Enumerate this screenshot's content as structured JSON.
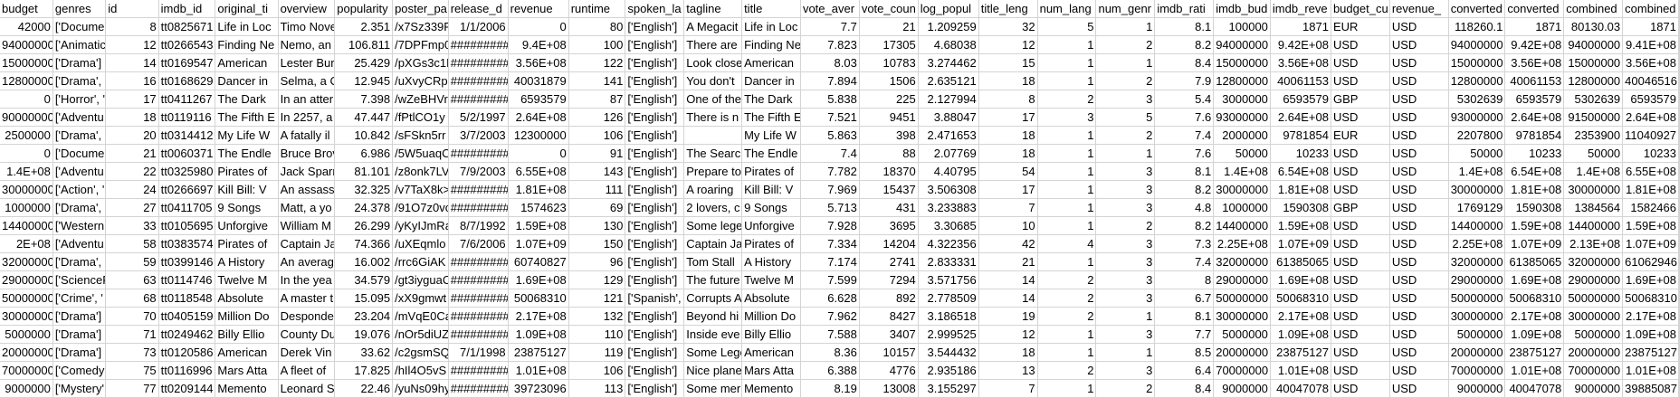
{
  "columns": [
    {
      "key": "budget",
      "header": "budget",
      "align": "num"
    },
    {
      "key": "genres",
      "header": "genres",
      "align": "txt"
    },
    {
      "key": "id",
      "header": "id",
      "align": "num"
    },
    {
      "key": "imdb_id",
      "header": "imdb_id",
      "align": "txt"
    },
    {
      "key": "original_title",
      "header": "original_ti",
      "align": "txt"
    },
    {
      "key": "overview",
      "header": "overview",
      "align": "txt"
    },
    {
      "key": "popularity",
      "header": "popularity",
      "align": "num"
    },
    {
      "key": "poster_path",
      "header": "poster_pa",
      "align": "txt"
    },
    {
      "key": "release_date",
      "header": "release_d",
      "align": "num"
    },
    {
      "key": "revenue",
      "header": "revenue",
      "align": "num"
    },
    {
      "key": "runtime",
      "header": "runtime",
      "align": "num"
    },
    {
      "key": "spoken_languages",
      "header": "spoken_la",
      "align": "txt"
    },
    {
      "key": "tagline",
      "header": "tagline",
      "align": "txt"
    },
    {
      "key": "title",
      "header": "title",
      "align": "txt"
    },
    {
      "key": "vote_average",
      "header": "vote_aver",
      "align": "num"
    },
    {
      "key": "vote_count",
      "header": "vote_coun",
      "align": "num"
    },
    {
      "key": "log_popularity",
      "header": "log_popul",
      "align": "num"
    },
    {
      "key": "title_length",
      "header": "title_leng",
      "align": "num"
    },
    {
      "key": "num_languages",
      "header": "num_lang",
      "align": "num"
    },
    {
      "key": "num_genres",
      "header": "num_genr",
      "align": "num"
    },
    {
      "key": "imdb_rating",
      "header": "imdb_rati",
      "align": "num"
    },
    {
      "key": "imdb_budget",
      "header": "imdb_bud",
      "align": "num"
    },
    {
      "key": "imdb_revenue",
      "header": "imdb_reve",
      "align": "num"
    },
    {
      "key": "budget_currency",
      "header": "budget_cu",
      "align": "txt"
    },
    {
      "key": "revenue_currency",
      "header": "revenue_",
      "align": "txt"
    },
    {
      "key": "converted_budget",
      "header": "converted",
      "align": "num"
    },
    {
      "key": "converted_revenue",
      "header": "converted",
      "align": "num"
    },
    {
      "key": "combined_budget",
      "header": "combined",
      "align": "num"
    },
    {
      "key": "combined_revenue",
      "header": "combined",
      "align": "num"
    }
  ],
  "rows": [
    [
      "42000",
      "['Documer",
      "8",
      "tt0825671",
      "Life in Loc",
      "Timo Nove",
      "2.351",
      "/x7Sz339F",
      "1/1/2006",
      "0",
      "80",
      "['English']",
      "A Megacit",
      "Life in Loc",
      "7.7",
      "21",
      "1.209259",
      "32",
      "5",
      "1",
      "8.1",
      "100000",
      "1871",
      "EUR",
      "USD",
      "118260.1",
      "1871",
      "80130.03",
      "1871"
    ],
    [
      "94000000",
      "['Animatic",
      "12",
      "tt0266543",
      "Finding Ne",
      "Nemo, an",
      "106.811",
      "/7DPFmp0",
      "#########",
      "9.4E+08",
      "100",
      "['English']",
      "There are",
      "Finding Ne",
      "7.823",
      "17305",
      "4.68038",
      "12",
      "1",
      "2",
      "8.2",
      "94000000",
      "9.42E+08",
      "USD",
      "USD",
      "94000000",
      "9.42E+08",
      "94000000",
      "9.41E+08"
    ],
    [
      "15000000",
      "['Drama']",
      "14",
      "tt0169547",
      "American",
      "Lester Bur",
      "25.429",
      "/pXGs3c1E",
      "#########",
      "3.56E+08",
      "122",
      "['English']",
      "Look close",
      "American",
      "8.03",
      "10783",
      "3.274462",
      "15",
      "1",
      "1",
      "8.4",
      "15000000",
      "3.56E+08",
      "USD",
      "USD",
      "15000000",
      "3.56E+08",
      "15000000",
      "3.56E+08"
    ],
    [
      "12800000",
      "['Drama', '",
      "16",
      "tt0168629",
      "Dancer in",
      "Selma, a C",
      "12.945",
      "/uXvyCRp",
      "#########",
      "40031879",
      "141",
      "['English']",
      "You don't",
      "Dancer in",
      "7.894",
      "1506",
      "2.635121",
      "18",
      "1",
      "2",
      "7.9",
      "12800000",
      "40061153",
      "USD",
      "USD",
      "12800000",
      "40061153",
      "12800000",
      "40046516"
    ],
    [
      "0",
      "['Horror', '",
      "17",
      "tt0411267",
      "The Dark",
      "In an atter",
      "7.398",
      "/wZeBHVr",
      "#########",
      "6593579",
      "87",
      "['English']",
      "One of the",
      "The Dark",
      "5.838",
      "225",
      "2.127994",
      "8",
      "2",
      "3",
      "5.4",
      "3000000",
      "6593579",
      "GBP",
      "USD",
      "5302639",
      "6593579",
      "5302639",
      "6593579"
    ],
    [
      "90000000",
      "['Adventu",
      "18",
      "tt0119116",
      "The Fifth E",
      "In 2257, a",
      "47.447",
      "/fPtlCO1y",
      "5/2/1997",
      "2.64E+08",
      "126",
      "['English']",
      "There is n",
      "The Fifth E",
      "7.521",
      "9451",
      "3.88047",
      "17",
      "3",
      "5",
      "7.6",
      "93000000",
      "2.64E+08",
      "USD",
      "USD",
      "93000000",
      "2.64E+08",
      "91500000",
      "2.64E+08"
    ],
    [
      "2500000",
      "['Drama', '",
      "20",
      "tt0314412",
      "My Life W",
      "A fatally il",
      "10.842",
      "/sFSkn5rr",
      "3/7/2003",
      "12300000",
      "106",
      "['English']",
      "",
      "My Life W",
      "5.863",
      "398",
      "2.471653",
      "18",
      "1",
      "2",
      "7.4",
      "2000000",
      "9781854",
      "EUR",
      "USD",
      "2207800",
      "9781854",
      "2353900",
      "11040927"
    ],
    [
      "0",
      "['Documer",
      "21",
      "tt0060371",
      "The Endle",
      "Bruce Brov",
      "6.986",
      "/5W5uaqC",
      "#########",
      "0",
      "91",
      "['English']",
      "The Searc",
      "The Endle",
      "7.4",
      "88",
      "2.07769",
      "18",
      "1",
      "1",
      "7.6",
      "50000",
      "10233",
      "USD",
      "USD",
      "50000",
      "10233",
      "50000",
      "10233"
    ],
    [
      "1.4E+08",
      "['Adventu",
      "22",
      "tt0325980",
      "Pirates of",
      "Jack Sparr",
      "81.101",
      "/z8onk7LV",
      "7/9/2003",
      "6.55E+08",
      "143",
      "['English']",
      "Prepare to",
      "Pirates of",
      "7.782",
      "18370",
      "4.40795",
      "54",
      "1",
      "3",
      "8.1",
      "1.4E+08",
      "6.54E+08",
      "USD",
      "USD",
      "1.4E+08",
      "6.54E+08",
      "1.4E+08",
      "6.55E+08"
    ],
    [
      "30000000",
      "['Action', '",
      "24",
      "tt0266697",
      "Kill Bill: V",
      "An assassi",
      "32.325",
      "/v7TaX8k>",
      "#########",
      "1.81E+08",
      "111",
      "['English']",
      "A roaring",
      "Kill Bill: V",
      "7.969",
      "15437",
      "3.506308",
      "17",
      "1",
      "3",
      "8.2",
      "30000000",
      "1.81E+08",
      "USD",
      "USD",
      "30000000",
      "1.81E+08",
      "30000000",
      "1.81E+08"
    ],
    [
      "1000000",
      "['Drama', '",
      "27",
      "tt0411705",
      "9 Songs",
      "Matt, a yo",
      "24.378",
      "/91O7z0vc",
      "#########",
      "1574623",
      "69",
      "['English']",
      "2 lovers, c",
      "9 Songs",
      "5.713",
      "431",
      "3.233883",
      "7",
      "1",
      "3",
      "4.8",
      "1000000",
      "1590308",
      "GBP",
      "USD",
      "1769129",
      "1590308",
      "1384564",
      "1582466"
    ],
    [
      "14400000",
      "['Western",
      "33",
      "tt0105695",
      "Unforgive",
      "William M",
      "26.299",
      "/yKyIJmRa",
      "8/7/1992",
      "1.59E+08",
      "130",
      "['English']",
      "Some lege",
      "Unforgive",
      "7.928",
      "3695",
      "3.30685",
      "10",
      "1",
      "2",
      "8.2",
      "14400000",
      "1.59E+08",
      "USD",
      "USD",
      "14400000",
      "1.59E+08",
      "14400000",
      "1.59E+08"
    ],
    [
      "2E+08",
      "['Adventu",
      "58",
      "tt0383574",
      "Pirates of",
      "Captain Ja",
      "74.366",
      "/uXEqmlo",
      "7/6/2006",
      "1.07E+09",
      "150",
      "['English']",
      "Captain Ja",
      "Pirates of",
      "7.334",
      "14204",
      "4.322356",
      "42",
      "4",
      "3",
      "7.3",
      "2.25E+08",
      "1.07E+09",
      "USD",
      "USD",
      "2.25E+08",
      "1.07E+09",
      "2.13E+08",
      "1.07E+09"
    ],
    [
      "32000000",
      "['Drama', '",
      "59",
      "tt0399146",
      "A History",
      "An averag",
      "16.002",
      "/rrc6GiAK",
      "#########",
      "60740827",
      "96",
      "['English']",
      "Tom Stall",
      "A History",
      "7.174",
      "2741",
      "2.833331",
      "21",
      "1",
      "3",
      "7.4",
      "32000000",
      "61385065",
      "USD",
      "USD",
      "32000000",
      "61385065",
      "32000000",
      "61062946"
    ],
    [
      "29000000",
      "['ScienceF",
      "63",
      "tt0114746",
      "Twelve M",
      "In the yea",
      "34.579",
      "/gt3iyguaC",
      "#########",
      "1.69E+08",
      "129",
      "['English']",
      "The future",
      "Twelve M",
      "7.599",
      "7294",
      "3.571756",
      "14",
      "2",
      "3",
      "8",
      "29000000",
      "1.69E+08",
      "USD",
      "USD",
      "29000000",
      "1.69E+08",
      "29000000",
      "1.69E+08"
    ],
    [
      "50000000",
      "['Crime', '",
      "68",
      "tt0118548",
      "Absolute",
      "A master t",
      "15.095",
      "/xX9gmwt",
      "#########",
      "50068310",
      "121",
      "['Spanish',",
      "Corrupts A",
      "Absolute",
      "6.628",
      "892",
      "2.778509",
      "14",
      "2",
      "3",
      "6.7",
      "50000000",
      "50068310",
      "USD",
      "USD",
      "50000000",
      "50068310",
      "50000000",
      "50068310"
    ],
    [
      "30000000",
      "['Drama']",
      "70",
      "tt0405159",
      "Million Do",
      "Desponde",
      "23.204",
      "/mVqE0Ca",
      "#########",
      "2.17E+08",
      "132",
      "['English']",
      "Beyond hi",
      "Million Do",
      "7.962",
      "8427",
      "3.186518",
      "19",
      "2",
      "1",
      "8.1",
      "30000000",
      "2.17E+08",
      "USD",
      "USD",
      "30000000",
      "2.17E+08",
      "30000000",
      "2.17E+08"
    ],
    [
      "5000000",
      "['Drama']",
      "71",
      "tt0249462",
      "Billy Ellio",
      "County Du",
      "19.076",
      "/nOr5diUZ",
      "#########",
      "1.09E+08",
      "110",
      "['English']",
      "Inside eve",
      "Billy Ellio",
      "7.588",
      "3407",
      "2.999525",
      "12",
      "1",
      "3",
      "7.7",
      "5000000",
      "1.09E+08",
      "USD",
      "USD",
      "5000000",
      "1.09E+08",
      "5000000",
      "1.09E+08"
    ],
    [
      "20000000",
      "['Drama']",
      "73",
      "tt0120586",
      "American",
      "Derek Vin",
      "33.62",
      "/c2gsmSQ",
      "7/1/1998",
      "23875127",
      "119",
      "['English']",
      "Some Lege",
      "American",
      "8.36",
      "10157",
      "3.544432",
      "18",
      "1",
      "1",
      "8.5",
      "20000000",
      "23875127",
      "USD",
      "USD",
      "20000000",
      "23875127",
      "20000000",
      "23875127"
    ],
    [
      "70000000",
      "['Comedy'",
      "75",
      "tt0116996",
      "Mars Atta",
      "A fleet of",
      "17.825",
      "/hIl4O5vS",
      "#########",
      "1.01E+08",
      "106",
      "['English']",
      "Nice plane",
      "Mars Atta",
      "6.388",
      "4776",
      "2.935186",
      "13",
      "2",
      "3",
      "6.4",
      "70000000",
      "1.01E+08",
      "USD",
      "USD",
      "70000000",
      "1.01E+08",
      "70000000",
      "1.01E+08"
    ],
    [
      "9000000",
      "['Mystery'",
      "77",
      "tt0209144",
      "Memento",
      "Leonard S",
      "22.46",
      "/yuNs09hy",
      "#########",
      "39723096",
      "113",
      "['English']",
      "Some mer",
      "Memento",
      "8.19",
      "13008",
      "3.155297",
      "7",
      "1",
      "2",
      "8.4",
      "9000000",
      "40047078",
      "USD",
      "USD",
      "9000000",
      "40047078",
      "9000000",
      "39885087"
    ]
  ]
}
